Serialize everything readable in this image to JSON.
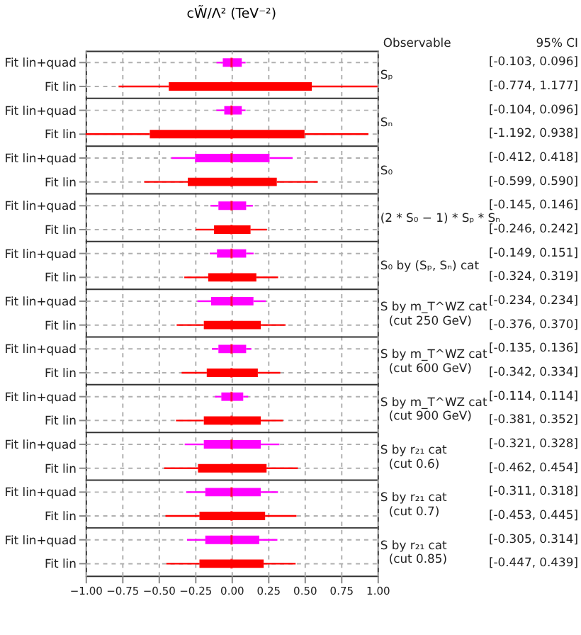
{
  "chart_data": {
    "type": "box",
    "orientation": "horizontal",
    "title": "cW̃/Λ² (TeV⁻²)",
    "categories": [
      "Fit lin+quad",
      "Fit lin",
      "Fit lin+quad",
      "Fit lin",
      "Fit lin+quad",
      "Fit lin",
      "Fit lin+quad",
      "Fit lin",
      "Fit lin+quad",
      "Fit lin",
      "Fit lin+quad",
      "Fit lin",
      "Fit lin+quad",
      "Fit lin",
      "Fit lin+quad",
      "Fit lin",
      "Fit lin+quad",
      "Fit lin",
      "Fit lin+quad",
      "Fit lin",
      "Fit lin+quad",
      "Fit lin"
    ],
    "colors": [
      "#ff00ff",
      "#ff0000",
      "#ff00ff",
      "#ff0000",
      "#ff00ff",
      "#ff0000",
      "#ff00ff",
      "#ff0000",
      "#ff00ff",
      "#ff0000",
      "#ff00ff",
      "#ff0000",
      "#ff00ff",
      "#ff0000",
      "#ff00ff",
      "#ff0000",
      "#ff00ff",
      "#ff0000",
      "#ff00ff",
      "#ff0000",
      "#ff00ff",
      "#ff0000"
    ],
    "grid": true,
    "xlim": [
      -1,
      1
    ],
    "xticks": [
      {
        "value": -1,
        "label": "−1.00"
      },
      {
        "value": -0.75,
        "label": "−0.75"
      },
      {
        "value": -0.5,
        "label": "−0.50"
      },
      {
        "value": -0.25,
        "label": "−0.25"
      },
      {
        "value": 0,
        "label": "0.00"
      },
      {
        "value": 0.25,
        "label": "0.25"
      },
      {
        "value": 0.5,
        "label": "0.50"
      },
      {
        "value": 0.75,
        "label": "0.75"
      },
      {
        "value": 1,
        "label": "1.00"
      }
    ],
    "boxes": [
      {
        "low": -0.103,
        "q1": -0.06,
        "median": 0,
        "q3": 0.07,
        "high": 0.096
      },
      {
        "low": -0.774,
        "q1": -0.43,
        "median": 0,
        "q3": 0.55,
        "high": 1.0
      },
      {
        "low": -0.104,
        "q1": -0.05,
        "median": 0,
        "q3": 0.07,
        "high": 0.096
      },
      {
        "low": -1.0,
        "q1": -0.56,
        "median": 0,
        "q3": 0.5,
        "high": 0.938
      },
      {
        "low": -0.412,
        "q1": -0.25,
        "median": 0,
        "q3": 0.26,
        "high": 0.418
      },
      {
        "low": -0.599,
        "q1": -0.3,
        "median": 0,
        "q3": 0.31,
        "high": 0.59
      },
      {
        "low": -0.145,
        "q1": -0.09,
        "median": 0,
        "q3": 0.1,
        "high": 0.146
      },
      {
        "low": -0.246,
        "q1": -0.12,
        "median": 0,
        "q3": 0.13,
        "high": 0.242
      },
      {
        "low": -0.149,
        "q1": -0.1,
        "median": 0,
        "q3": 0.1,
        "high": 0.151
      },
      {
        "low": -0.324,
        "q1": -0.16,
        "median": 0,
        "q3": 0.17,
        "high": 0.319
      },
      {
        "low": -0.234,
        "q1": -0.14,
        "median": 0,
        "q3": 0.15,
        "high": 0.234
      },
      {
        "low": -0.376,
        "q1": -0.19,
        "median": 0,
        "q3": 0.2,
        "high": 0.37
      },
      {
        "low": -0.135,
        "q1": -0.09,
        "median": 0,
        "q3": 0.1,
        "high": 0.136
      },
      {
        "low": -0.342,
        "q1": -0.17,
        "median": 0,
        "q3": 0.18,
        "high": 0.334
      },
      {
        "low": -0.114,
        "q1": -0.07,
        "median": 0,
        "q3": 0.08,
        "high": 0.114
      },
      {
        "low": -0.381,
        "q1": -0.19,
        "median": 0,
        "q3": 0.2,
        "high": 0.352
      },
      {
        "low": -0.321,
        "q1": -0.19,
        "median": 0,
        "q3": 0.2,
        "high": 0.328
      },
      {
        "low": -0.462,
        "q1": -0.23,
        "median": 0,
        "q3": 0.24,
        "high": 0.454
      },
      {
        "low": -0.311,
        "q1": -0.18,
        "median": 0,
        "q3": 0.2,
        "high": 0.318
      },
      {
        "low": -0.453,
        "q1": -0.22,
        "median": 0,
        "q3": 0.23,
        "high": 0.445
      },
      {
        "low": -0.305,
        "q1": -0.18,
        "median": 0,
        "q3": 0.19,
        "high": 0.314
      },
      {
        "low": -0.447,
        "q1": -0.22,
        "median": 0,
        "q3": 0.22,
        "high": 0.439
      }
    ],
    "value_labels": [
      "[-0.103, 0.096]",
      "[-0.774, 1.177]",
      "[-0.104, 0.096]",
      "[-1.192, 0.938]",
      "[-0.412, 0.418]",
      "[-0.599, 0.590]",
      "[-0.145, 0.146]",
      "[-0.246, 0.242]",
      "[-0.149, 0.151]",
      "[-0.324, 0.319]",
      "[-0.234, 0.234]",
      "[-0.376, 0.370]",
      "[-0.135, 0.136]",
      "[-0.342, 0.334]",
      "[-0.114, 0.114]",
      "[-0.381, 0.352]",
      "[-0.321, 0.328]",
      "[-0.462, 0.454]",
      "[-0.311, 0.318]",
      "[-0.453, 0.445]",
      "[-0.305, 0.314]",
      "[-0.447, 0.439]"
    ],
    "annotations": [
      "Observable",
      "95% CI",
      "Sₚ",
      "Sₙ",
      "S₀",
      "(2 * S₀ − 1) * Sₚ * Sₙ",
      "S₀ by (Sₚ, Sₙ) cat",
      "S by m_T^WZ cat\n(cut 250 GeV)",
      "S by m_T^WZ cat\n(cut 600 GeV)",
      "S by m_T^WZ cat\n(cut 900 GeV)",
      "S by r₂₁ cat\n(cut 0.6)",
      "S by r₂₁ cat\n(cut 0.7)",
      "S by r₂₁ cat\n(cut 0.85)"
    ]
  }
}
